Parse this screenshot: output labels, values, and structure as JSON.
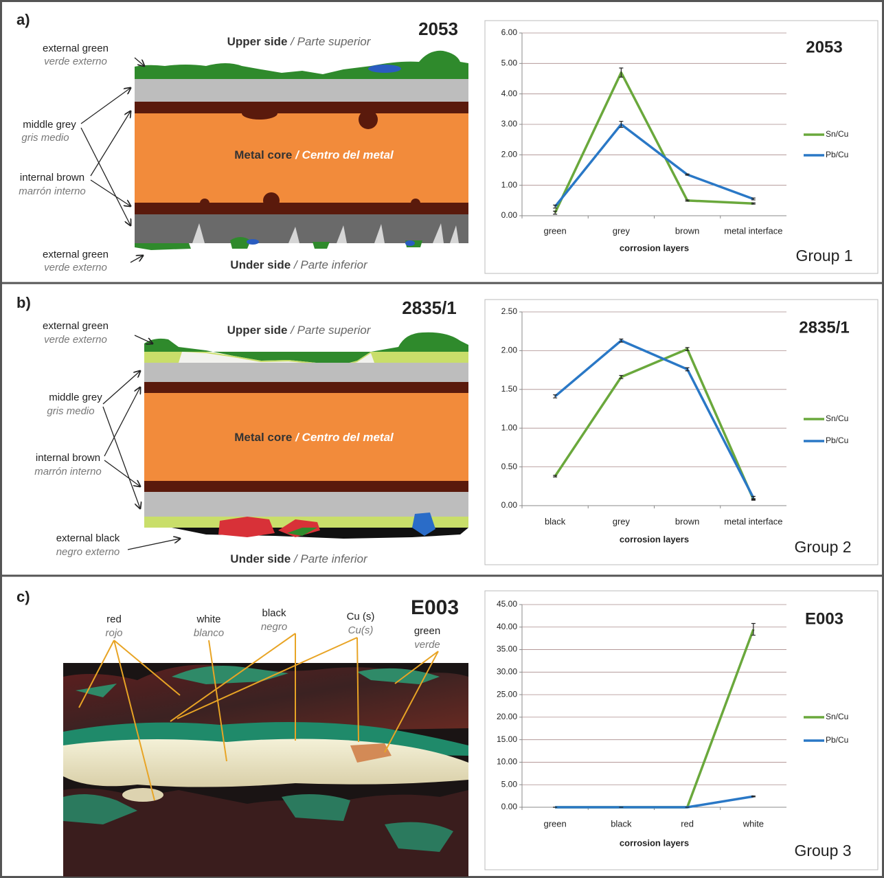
{
  "panels": [
    {
      "label": "a)",
      "sample": "2053",
      "upper": {
        "en": "Upper side",
        "sep": "/",
        "es": "Parte superior"
      },
      "core": {
        "en": "Metal core",
        "sep": "/",
        "es": "Centro del metal"
      },
      "under": {
        "en": "Under side",
        "sep": "/",
        "es": "Parte inferior"
      },
      "layer_labels": [
        {
          "en": "external green",
          "es": "verde externo"
        },
        {
          "en": "middle grey",
          "es": "gris medio"
        },
        {
          "en": "internal brown",
          "es": "marrón interno"
        },
        {
          "en": "external green",
          "es": "verde externo"
        }
      ],
      "group": "Group 1"
    },
    {
      "label": "b)",
      "sample": "2835/1",
      "upper": {
        "en": "Upper side",
        "sep": "/",
        "es": "Parte superior"
      },
      "core": {
        "en": "Metal core",
        "sep": "/",
        "es": "Centro del metal"
      },
      "under": {
        "en": "Under side",
        "sep": "/",
        "es": "Parte inferior"
      },
      "layer_labels": [
        {
          "en": "external green",
          "es": "verde externo"
        },
        {
          "en": "middle grey",
          "es": "gris medio"
        },
        {
          "en": "internal brown",
          "es": "marrón interno"
        },
        {
          "en": "external black",
          "es": "negro externo"
        }
      ],
      "group": "Group 2"
    },
    {
      "label": "c)",
      "sample": "E003",
      "layer_labels": [
        {
          "en": "red",
          "es": "rojo"
        },
        {
          "en": "white",
          "es": "blanco"
        },
        {
          "en": "black",
          "es": "negro"
        },
        {
          "en": "Cu (s)",
          "es": "Cu(s)"
        },
        {
          "en": "green",
          "es": "verde"
        }
      ],
      "group": "Group 3"
    }
  ],
  "chart_data": [
    {
      "type": "line",
      "title": "2053",
      "xlabel": "corrosion layers",
      "categories": [
        "green",
        "grey",
        "brown",
        "metal interface"
      ],
      "ylim": [
        0,
        6
      ],
      "yticks": [
        {
          "value": 0,
          "label": "0.00"
        },
        {
          "value": 1,
          "label": "1.00"
        },
        {
          "value": 2,
          "label": "2.00"
        },
        {
          "value": 3,
          "label": "3.00"
        },
        {
          "value": 4,
          "label": "4.00"
        },
        {
          "value": 5,
          "label": "5.00"
        },
        {
          "value": 6,
          "label": "6.00"
        }
      ],
      "grid": true,
      "legend": "right",
      "series": [
        {
          "name": "Sn/Cu",
          "color": "#6aa83c",
          "values": [
            0.1,
            4.7,
            0.5,
            0.4
          ],
          "errors": [
            0.05,
            0.15,
            0.02,
            0.02
          ]
        },
        {
          "name": "Pb/Cu",
          "color": "#2a78c6",
          "values": [
            0.3,
            3.0,
            1.35,
            0.55
          ],
          "errors": [
            0.05,
            0.1,
            0.02,
            0.03
          ]
        }
      ]
    },
    {
      "type": "line",
      "title": "2835/1",
      "xlabel": "corrosion layers",
      "categories": [
        "black",
        "grey",
        "brown",
        "metal interface"
      ],
      "ylim": [
        0,
        2.5
      ],
      "yticks": [
        {
          "value": 0,
          "label": "0.00"
        },
        {
          "value": 0.5,
          "label": "0.50"
        },
        {
          "value": 1,
          "label": "1.00"
        },
        {
          "value": 1.5,
          "label": "1.50"
        },
        {
          "value": 2,
          "label": "2.00"
        },
        {
          "value": 2.5,
          "label": "2.50"
        }
      ],
      "grid": true,
      "legend": "right",
      "series": [
        {
          "name": "Sn/Cu",
          "color": "#6aa83c",
          "values": [
            0.38,
            1.66,
            2.02,
            0.08
          ],
          "errors": [
            0.01,
            0.02,
            0.02,
            0.01
          ]
        },
        {
          "name": "Pb/Cu",
          "color": "#2a78c6",
          "values": [
            1.41,
            2.13,
            1.76,
            0.1
          ],
          "errors": [
            0.02,
            0.02,
            0.02,
            0.02
          ]
        }
      ]
    },
    {
      "type": "line",
      "title": "E003",
      "xlabel": "corrosion layers",
      "categories": [
        "green",
        "black",
        "red",
        "white"
      ],
      "ylim": [
        0,
        45
      ],
      "yticks": [
        {
          "value": 0,
          "label": "0.00"
        },
        {
          "value": 5,
          "label": "5.00"
        },
        {
          "value": 10,
          "label": "10.00"
        },
        {
          "value": 15,
          "label": "15.00"
        },
        {
          "value": 20,
          "label": "20.00"
        },
        {
          "value": 25,
          "label": "25.00"
        },
        {
          "value": 30,
          "label": "30.00"
        },
        {
          "value": 35,
          "label": "35.00"
        },
        {
          "value": 40,
          "label": "40.00"
        },
        {
          "value": 45,
          "label": "45.00"
        }
      ],
      "grid": true,
      "legend": "right",
      "series": [
        {
          "name": "Sn/Cu",
          "color": "#6aa83c",
          "values": [
            0,
            0,
            0,
            39.5
          ],
          "errors": [
            0,
            0,
            0,
            1.3
          ]
        },
        {
          "name": "Pb/Cu",
          "color": "#2a78c6",
          "values": [
            0,
            0,
            0,
            2.4
          ],
          "errors": [
            0,
            0,
            0,
            0.1
          ]
        }
      ]
    }
  ]
}
